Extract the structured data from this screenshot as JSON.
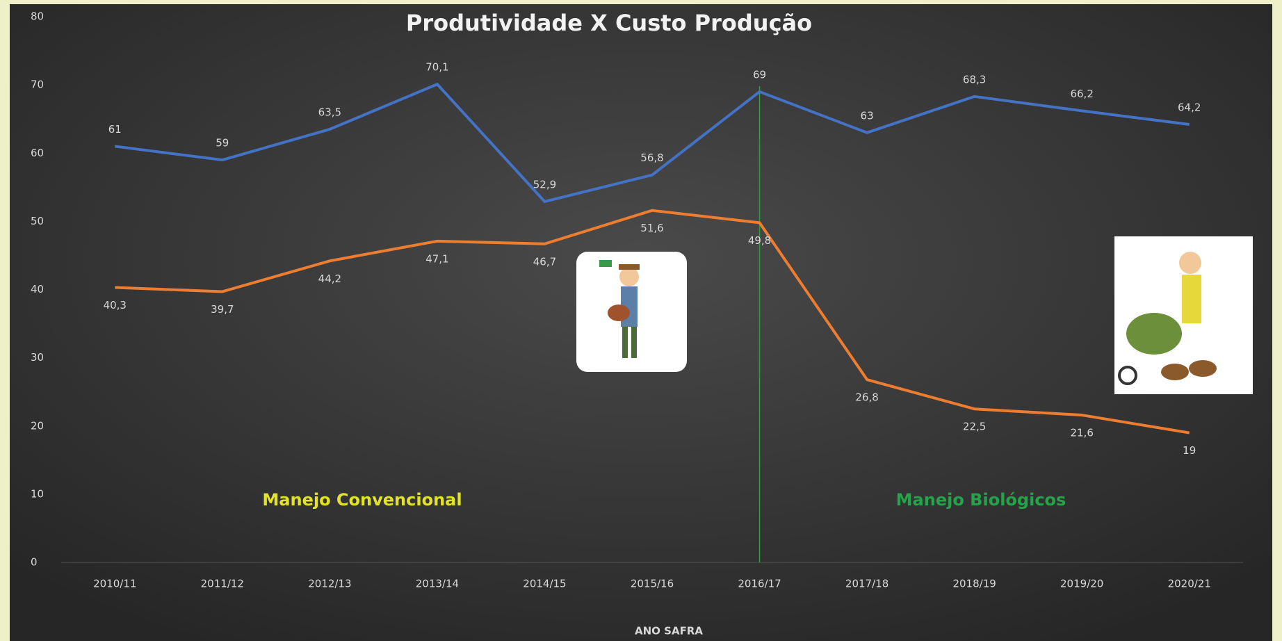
{
  "chart_data": {
    "type": "line",
    "title": "Produtividade X Custo Produção",
    "x_label": "ANO SAFRA",
    "categories": [
      "2010/11",
      "2011/12",
      "2012/13",
      "2013/14",
      "2014/15",
      "2015/16",
      "2016/17",
      "2017/18",
      "2018/19",
      "2019/20",
      "2020/21"
    ],
    "series": [
      {
        "color": "#4472c4",
        "values": [
          61,
          59,
          63.5,
          70.1,
          52.9,
          56.8,
          69,
          63,
          68.3,
          66.2,
          64.2
        ],
        "value_labels": [
          "61",
          "59",
          "63,5",
          "70,1",
          "52,9",
          "56,8",
          "69",
          "63",
          "68,3",
          "66,2",
          "64,2"
        ]
      },
      {
        "color": "#ed7d31",
        "values": [
          40.3,
          39.7,
          44.2,
          47.1,
          46.7,
          51.6,
          49.8,
          26.8,
          22.5,
          21.6,
          19
        ],
        "value_labels": [
          "40,3",
          "39,7",
          "44,2",
          "47,1",
          "46,7",
          "51,6",
          "49,8",
          "26,8",
          "22,5",
          "21,6",
          "19"
        ]
      }
    ],
    "ylim": [
      0,
      80
    ],
    "yticks": [
      0,
      10,
      20,
      30,
      40,
      50,
      60,
      70,
      80
    ],
    "grid": false,
    "divider_at": "2016/17",
    "divider_color": "#2e9e3e",
    "annotations": [
      {
        "text": "Manejo Convencional",
        "color": "#e3e32a"
      },
      {
        "text": "Manejo Biológicos",
        "color": "#25a34a"
      }
    ]
  }
}
